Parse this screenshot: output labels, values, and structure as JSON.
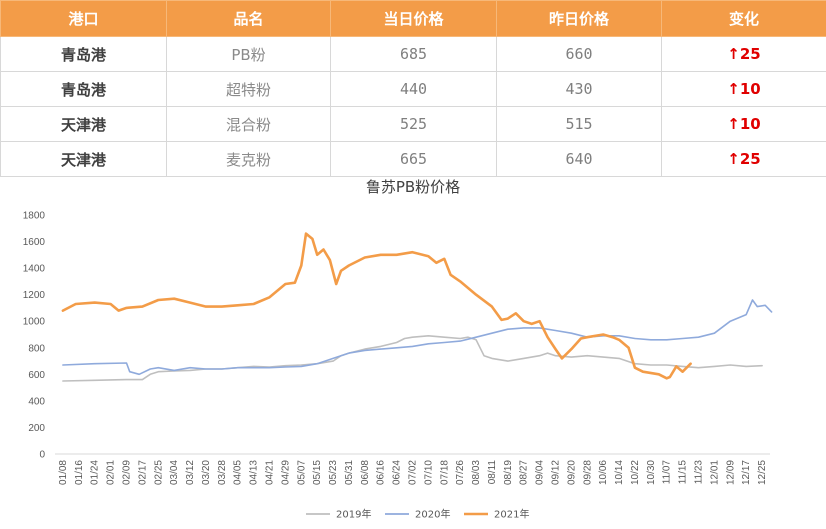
{
  "table": {
    "headers": [
      "港口",
      "品名",
      "当日价格",
      "昨日价格",
      "变化"
    ],
    "rows": [
      {
        "port": "青岛港",
        "product": "PB粉",
        "today": "685",
        "yesterday": "660",
        "change": "↑25"
      },
      {
        "port": "青岛港",
        "product": "超特粉",
        "today": "440",
        "yesterday": "430",
        "change": "↑10"
      },
      {
        "port": "天津港",
        "product": "混合粉",
        "today": "525",
        "yesterday": "515",
        "change": "↑10"
      },
      {
        "port": "天津港",
        "product": "麦克粉",
        "today": "665",
        "yesterday": "640",
        "change": "↑25"
      }
    ],
    "colors": {
      "header_bg": "#f39c48",
      "up": "#e00000"
    }
  },
  "chart_data": {
    "type": "line",
    "title": "鲁苏PB粉价格",
    "xlabel": "",
    "ylabel": "",
    "ylim": [
      0,
      1800
    ],
    "y_ticks": [
      0,
      200,
      400,
      600,
      800,
      1000,
      1200,
      1400,
      1600,
      1800
    ],
    "x_ticks": [
      "01/08",
      "01/16",
      "01/24",
      "02/01",
      "02/09",
      "02/17",
      "02/25",
      "03/04",
      "03/12",
      "03/20",
      "03/28",
      "04/05",
      "04/13",
      "04/21",
      "04/29",
      "05/07",
      "05/15",
      "05/23",
      "05/31",
      "06/08",
      "06/16",
      "06/24",
      "07/02",
      "07/10",
      "07/18",
      "07/26",
      "08/03",
      "08/11",
      "08/19",
      "08/27",
      "09/04",
      "09/12",
      "09/20",
      "09/28",
      "10/06",
      "10/14",
      "10/22",
      "10/30",
      "11/07",
      "11/15",
      "11/23",
      "12/01",
      "12/09",
      "12/17",
      "12/25"
    ],
    "grid": false,
    "legend_position": "bottom",
    "series": [
      {
        "name": "2019年",
        "color": "#bfbfbf",
        "points": [
          [
            0,
            550
          ],
          [
            2,
            555
          ],
          [
            4,
            560
          ],
          [
            5,
            560
          ],
          [
            5.5,
            600
          ],
          [
            6,
            620
          ],
          [
            7,
            625
          ],
          [
            8,
            630
          ],
          [
            9,
            640
          ],
          [
            10,
            640
          ],
          [
            11,
            650
          ],
          [
            12,
            660
          ],
          [
            13,
            655
          ],
          [
            14,
            665
          ],
          [
            15,
            670
          ],
          [
            16,
            680
          ],
          [
            17,
            700
          ],
          [
            17.5,
            740
          ],
          [
            18,
            760
          ],
          [
            19,
            790
          ],
          [
            20,
            810
          ],
          [
            21,
            840
          ],
          [
            21.5,
            870
          ],
          [
            22,
            880
          ],
          [
            23,
            890
          ],
          [
            24,
            880
          ],
          [
            25,
            870
          ],
          [
            25.5,
            880
          ],
          [
            26,
            860
          ],
          [
            26.5,
            740
          ],
          [
            27,
            720
          ],
          [
            28,
            700
          ],
          [
            29,
            720
          ],
          [
            30,
            740
          ],
          [
            30.5,
            760
          ],
          [
            31,
            740
          ],
          [
            32,
            730
          ],
          [
            33,
            740
          ],
          [
            34,
            730
          ],
          [
            35,
            720
          ],
          [
            36,
            680
          ],
          [
            37,
            670
          ],
          [
            38,
            670
          ],
          [
            39,
            660
          ],
          [
            40,
            650
          ],
          [
            41,
            660
          ],
          [
            42,
            670
          ],
          [
            43,
            660
          ],
          [
            44,
            665
          ]
        ]
      },
      {
        "name": "2020年",
        "color": "#8faadc",
        "points": [
          [
            0,
            670
          ],
          [
            2,
            680
          ],
          [
            4,
            685
          ],
          [
            4.2,
            620
          ],
          [
            4.8,
            600
          ],
          [
            5.5,
            640
          ],
          [
            6,
            650
          ],
          [
            7,
            630
          ],
          [
            8,
            650
          ],
          [
            9,
            640
          ],
          [
            10,
            640
          ],
          [
            11,
            650
          ],
          [
            12,
            650
          ],
          [
            13,
            650
          ],
          [
            14,
            655
          ],
          [
            15,
            660
          ],
          [
            16,
            680
          ],
          [
            17,
            720
          ],
          [
            18,
            760
          ],
          [
            19,
            780
          ],
          [
            20,
            790
          ],
          [
            21,
            800
          ],
          [
            22,
            810
          ],
          [
            23,
            830
          ],
          [
            24,
            840
          ],
          [
            25,
            850
          ],
          [
            26,
            880
          ],
          [
            27,
            910
          ],
          [
            28,
            940
          ],
          [
            29,
            950
          ],
          [
            30,
            950
          ],
          [
            31,
            930
          ],
          [
            32,
            910
          ],
          [
            33,
            880
          ],
          [
            34,
            890
          ],
          [
            35,
            890
          ],
          [
            36,
            870
          ],
          [
            37,
            860
          ],
          [
            38,
            860
          ],
          [
            39,
            870
          ],
          [
            40,
            880
          ],
          [
            41,
            910
          ],
          [
            42,
            1000
          ],
          [
            43,
            1050
          ],
          [
            43.4,
            1160
          ],
          [
            43.7,
            1110
          ],
          [
            44.2,
            1120
          ],
          [
            44.6,
            1070
          ]
        ]
      },
      {
        "name": "2021年",
        "color": "#f39c48",
        "points": [
          [
            0,
            1080
          ],
          [
            0.8,
            1130
          ],
          [
            2,
            1140
          ],
          [
            3,
            1130
          ],
          [
            3.5,
            1080
          ],
          [
            4,
            1100
          ],
          [
            5,
            1110
          ],
          [
            6,
            1160
          ],
          [
            7,
            1170
          ],
          [
            8,
            1140
          ],
          [
            9,
            1110
          ],
          [
            10,
            1110
          ],
          [
            11,
            1120
          ],
          [
            12,
            1130
          ],
          [
            13,
            1180
          ],
          [
            14,
            1280
          ],
          [
            14.6,
            1290
          ],
          [
            15,
            1420
          ],
          [
            15.3,
            1660
          ],
          [
            15.7,
            1620
          ],
          [
            16,
            1500
          ],
          [
            16.4,
            1540
          ],
          [
            16.8,
            1460
          ],
          [
            17.2,
            1280
          ],
          [
            17.5,
            1380
          ],
          [
            18,
            1420
          ],
          [
            19,
            1480
          ],
          [
            20,
            1500
          ],
          [
            21,
            1500
          ],
          [
            22,
            1520
          ],
          [
            23,
            1490
          ],
          [
            23.5,
            1440
          ],
          [
            24,
            1470
          ],
          [
            24.4,
            1350
          ],
          [
            25,
            1300
          ],
          [
            26,
            1200
          ],
          [
            27,
            1110
          ],
          [
            27.6,
            1010
          ],
          [
            28,
            1020
          ],
          [
            28.5,
            1060
          ],
          [
            29,
            1000
          ],
          [
            29.5,
            980
          ],
          [
            30,
            1000
          ],
          [
            30.5,
            880
          ],
          [
            31,
            790
          ],
          [
            31.4,
            720
          ],
          [
            32,
            790
          ],
          [
            32.6,
            870
          ],
          [
            33,
            880
          ],
          [
            34,
            900
          ],
          [
            34.6,
            880
          ],
          [
            35,
            860
          ],
          [
            35.6,
            800
          ],
          [
            36,
            650
          ],
          [
            36.5,
            620
          ],
          [
            37.5,
            600
          ],
          [
            38,
            570
          ],
          [
            38.2,
            580
          ],
          [
            38.6,
            660
          ],
          [
            39,
            620
          ],
          [
            39.5,
            680
          ]
        ]
      }
    ]
  }
}
